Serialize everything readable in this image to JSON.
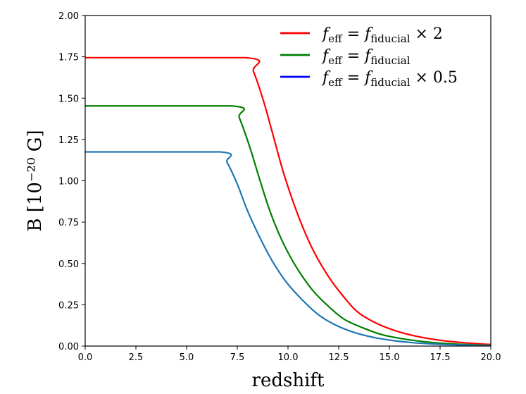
{
  "chart_data": {
    "type": "line",
    "xlabel": "redshift",
    "ylabel": "B [10⁻²⁰ G]",
    "xlim": [
      0,
      20
    ],
    "ylim": [
      0,
      2.0
    ],
    "x_ticks": [
      "0.0",
      "2.5",
      "5.0",
      "7.5",
      "10.0",
      "12.5",
      "15.0",
      "17.5",
      "20.0"
    ],
    "y_ticks": [
      "0.00",
      "0.25",
      "0.50",
      "0.75",
      "1.00",
      "1.25",
      "1.50",
      "1.75",
      "2.00"
    ],
    "grid": false,
    "legend_position": "top-right",
    "series": [
      {
        "name": "f_eff = f_fiducial × 2",
        "legend": {
          "pre": "f",
          "sub1": "eff",
          "mid": " = f",
          "sub2": "fiducial",
          "post": " × 2"
        },
        "color": "#ff0000",
        "x": [
          0,
          7.9,
          8.3,
          8.8,
          9.3,
          9.8,
          10.5,
          11.2,
          12.0,
          12.8,
          13.5,
          14.5,
          15.5,
          16.5,
          17.5,
          18.5,
          19.5,
          20.0
        ],
        "y": [
          1.745,
          1.745,
          1.66,
          1.48,
          1.26,
          1.04,
          0.79,
          0.59,
          0.42,
          0.29,
          0.2,
          0.13,
          0.085,
          0.055,
          0.035,
          0.022,
          0.013,
          0.01
        ]
      },
      {
        "name": "f_eff = f_fiducial",
        "legend": {
          "pre": "f",
          "sub1": "eff",
          "mid": " = f",
          "sub2": "fiducial",
          "post": ""
        },
        "color": "#008000",
        "x": [
          0,
          7.2,
          7.6,
          8.1,
          8.6,
          9.1,
          9.7,
          10.4,
          11.2,
          12.0,
          12.8,
          13.7,
          14.6,
          15.6,
          16.6,
          17.6,
          18.6,
          19.5,
          20.0
        ],
        "y": [
          1.453,
          1.453,
          1.38,
          1.21,
          1.01,
          0.82,
          0.64,
          0.48,
          0.34,
          0.24,
          0.16,
          0.11,
          0.07,
          0.045,
          0.028,
          0.017,
          0.01,
          0.006,
          0.005
        ]
      },
      {
        "name": "f_eff = f_fiducial × 0.5",
        "legend": {
          "pre": "f",
          "sub1": "eff",
          "mid": " = f",
          "sub2": "fiducial",
          "post": " × 0.5"
        },
        "color": "#0000ff",
        "line_color": "#1f77b4",
        "x": [
          0,
          6.6,
          7.0,
          7.5,
          8.0,
          8.6,
          9.2,
          9.9,
          10.7,
          11.5,
          12.3,
          13.2,
          14.2,
          15.2,
          16.2,
          17.3,
          18.4,
          19.4,
          20.0
        ],
        "y": [
          1.175,
          1.175,
          1.11,
          0.98,
          0.82,
          0.66,
          0.52,
          0.39,
          0.28,
          0.19,
          0.13,
          0.085,
          0.053,
          0.033,
          0.02,
          0.012,
          0.007,
          0.004,
          0.003
        ]
      }
    ]
  }
}
